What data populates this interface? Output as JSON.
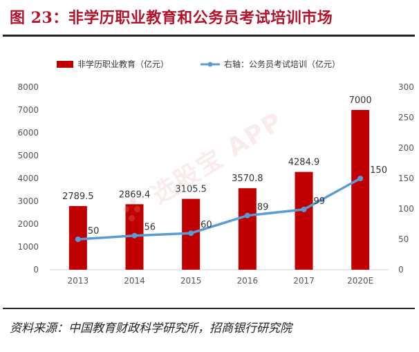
{
  "figure": {
    "title": "图 23：非学历职业教育和公务员考试培训市场",
    "source": "资料来源：中国教育财政科学研究所，招商银行研究院",
    "watermark": "选股宝 APP"
  },
  "chart_data": {
    "type": "bar",
    "categories": [
      "2013",
      "2014",
      "2015",
      "2016",
      "2017",
      "2020E"
    ],
    "series": [
      {
        "name": "非学历职业教育（亿元）",
        "type": "bar",
        "axis": "left",
        "color": "#c00000",
        "values": [
          2789.5,
          2869.4,
          3105.5,
          3570.8,
          4284.9,
          7000
        ],
        "labels": [
          "2789.5",
          "2869.4",
          "3105.5",
          "3570.8",
          "4284.9",
          "7000"
        ]
      },
      {
        "name": "右轴：公务员考试培训（亿元）",
        "type": "line",
        "axis": "right",
        "color": "#5b9bd5",
        "values": [
          50,
          56,
          60,
          89,
          99,
          150
        ],
        "labels": [
          "50",
          "56",
          "60",
          "89",
          "99",
          "150"
        ]
      }
    ],
    "y_left": {
      "min": 0,
      "max": 8000,
      "ticks": [
        "0",
        "1000",
        "2000",
        "3000",
        "4000",
        "5000",
        "6000",
        "7000",
        "8000"
      ]
    },
    "y_right": {
      "min": 0,
      "max": 300,
      "ticks": [
        "0",
        "50",
        "100",
        "150",
        "200",
        "250",
        "300"
      ]
    },
    "legend": {
      "position": "top"
    },
    "grid": false
  }
}
